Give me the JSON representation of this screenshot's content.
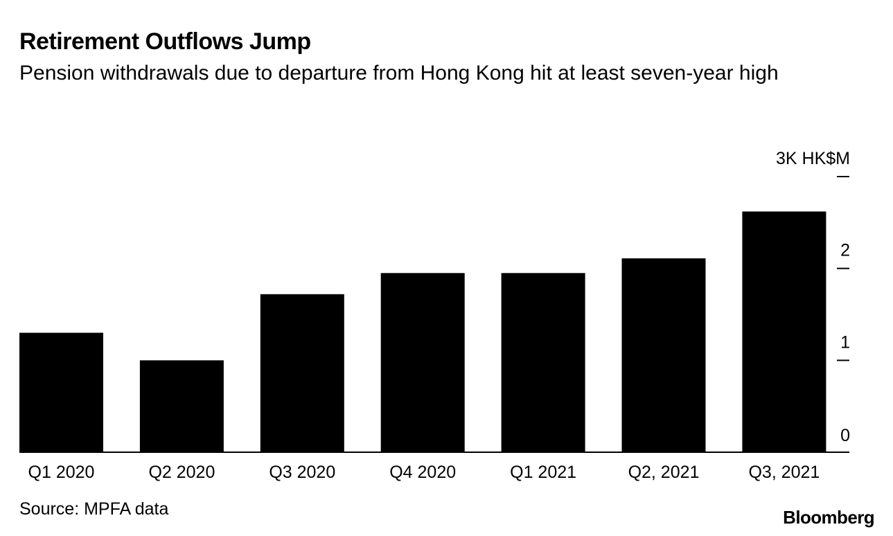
{
  "header": {
    "title": "Retirement Outflows Jump",
    "subtitle": "Pension withdrawals due to departure from Hong Kong hit at least seven-year high"
  },
  "footer": {
    "source": "Source: MPFA data",
    "brand": "Bloomberg"
  },
  "colors": {
    "bar": "#000000",
    "axis": "#000000",
    "background": "#ffffff"
  },
  "chart_data": {
    "type": "bar",
    "title": "Retirement Outflows Jump",
    "subtitle": "Pension withdrawals due to departure from Hong Kong hit at least seven-year high",
    "categories": [
      "Q1 2020",
      "Q2 2020",
      "Q3 2020",
      "Q4 2020",
      "Q1 2021",
      "Q2, 2021",
      "Q3, 2021"
    ],
    "values": [
      1.3,
      1.0,
      1.72,
      1.95,
      1.95,
      2.11,
      2.62
    ],
    "unit": "K HK$M",
    "ylim": [
      0,
      3
    ],
    "yticks": [
      0,
      1,
      2,
      3
    ],
    "ytick_labels": [
      "0",
      "1",
      "2",
      "3K HK$M"
    ],
    "xlabel": "",
    "ylabel": "",
    "yaxis_position": "right",
    "grid": false,
    "legend": "none"
  }
}
